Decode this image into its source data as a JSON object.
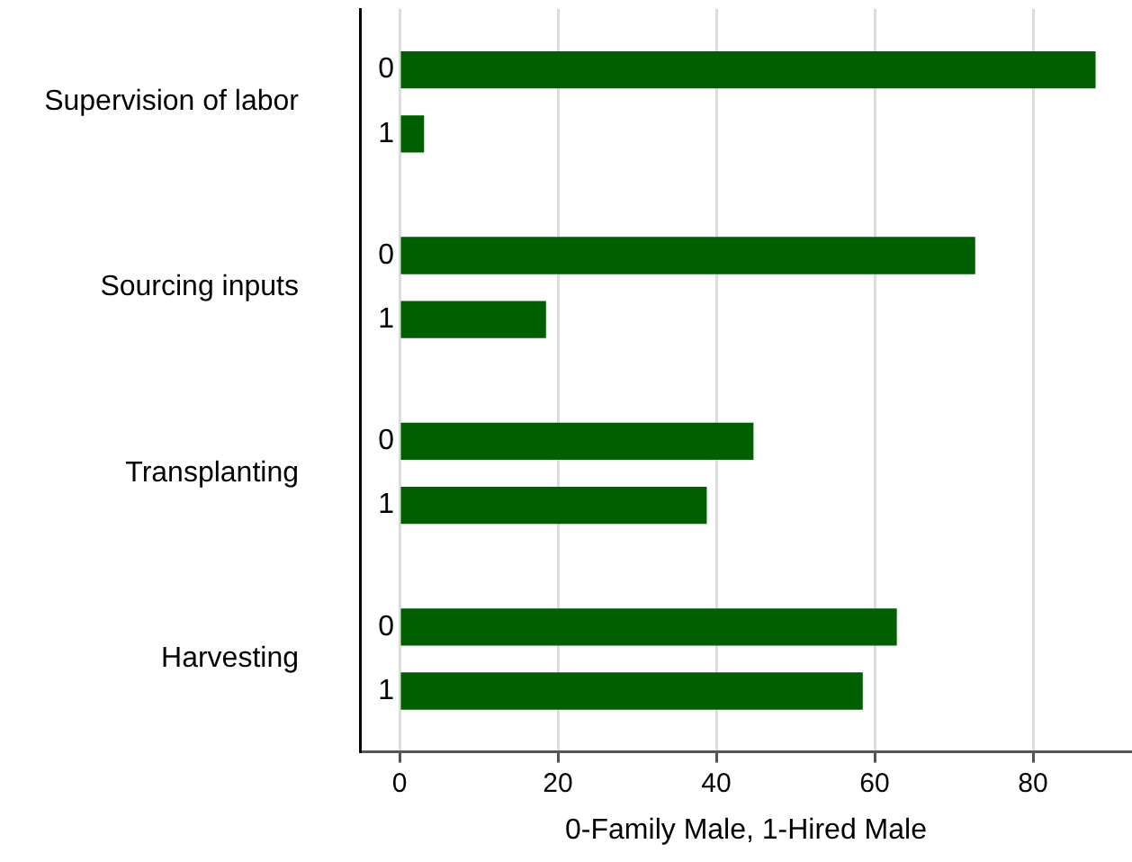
{
  "chart_data": {
    "type": "bar",
    "orientation": "horizontal",
    "xlabel": "0-Family Male, 1-Hired Male",
    "categories": [
      "Supervision of labor",
      "Sourcing inputs",
      "Transplanting",
      "Harvesting"
    ],
    "series": [
      {
        "name": "0",
        "color": "#005f00",
        "values": [
          87.9,
          72.7,
          44.7,
          62.8
        ]
      },
      {
        "name": "1",
        "color": "#005f00",
        "values": [
          3.1,
          18.5,
          38.8,
          58.5
        ]
      }
    ],
    "xlim": [
      -5,
      92.5
    ],
    "xticks": [
      0,
      20,
      40,
      60,
      80
    ],
    "grid": "x",
    "legend": false
  }
}
